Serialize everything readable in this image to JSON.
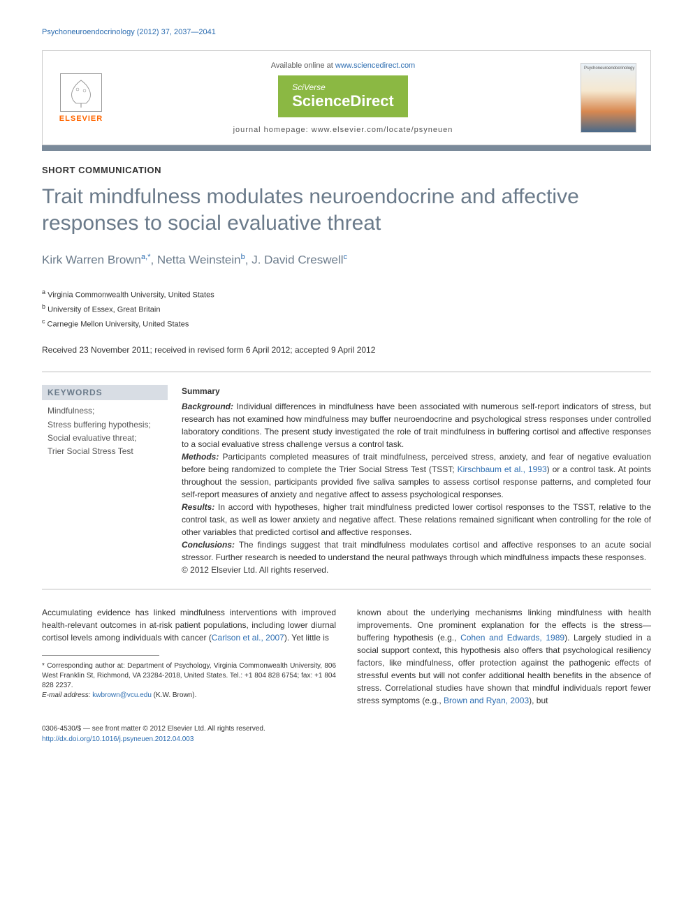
{
  "running_header": "Psychoneuroendocrinology (2012) 37, 2037—2041",
  "masthead": {
    "elsevier": "ELSEVIER",
    "available": "Available online at ",
    "available_link": "www.sciencedirect.com",
    "sciverse_tag": "SciVerse",
    "sciverse_main": "ScienceDirect",
    "homepage": "journal homepage: www.elsevier.com/locate/psyneuen",
    "cover_title": "Psychoneuroendocrinology"
  },
  "article_type": "SHORT COMMUNICATION",
  "title": "Trait mindfulness modulates neuroendocrine and affective responses to social evaluative threat",
  "authors_html": "Kirk Warren Brown<sup>a,*</sup>, Netta Weinstein<sup>b</sup>, J. David Creswell<sup>c</sup>",
  "affiliations": [
    "a Virginia Commonwealth University, United States",
    "b University of Essex, Great Britain",
    "c Carnegie Mellon University, United States"
  ],
  "dates": "Received 23 November 2011; received in revised form 6 April 2012; accepted 9 April 2012",
  "keywords_heading": "KEYWORDS",
  "keywords": "Mindfulness;\nStress buffering hypothesis;\nSocial evaluative threat;\nTrier Social Stress Test",
  "summary": {
    "heading": "Summary",
    "background_label": "Background:",
    "background": " Individual differences in mindfulness have been associated with numerous self-report indicators of stress, but research has not examined how mindfulness may buffer neuroendocrine and psychological stress responses under controlled laboratory conditions. The present study investigated the role of trait mindfulness in buffering cortisol and affective responses to a social evaluative stress challenge versus a control task.",
    "methods_label": "Methods:",
    "methods_a": " Participants completed measures of trait mindfulness, perceived stress, anxiety, and fear of negative evaluation before being randomized to complete the Trier Social Stress Test (TSST; ",
    "methods_link": "Kirschbaum et al., 1993",
    "methods_b": ") or a control task. At points throughout the session, participants provided five saliva samples to assess cortisol response patterns, and completed four self-report measures of anxiety and negative affect to assess psychological responses.",
    "results_label": "Results:",
    "results": " In accord with hypotheses, higher trait mindfulness predicted lower cortisol responses to the TSST, relative to the control task, as well as lower anxiety and negative affect. These relations remained significant when controlling for the role of other variables that predicted cortisol and affective responses.",
    "conclusions_label": "Conclusions:",
    "conclusions": " The findings suggest that trait mindfulness modulates cortisol and affective responses to an acute social stressor. Further research is needed to understand the neural pathways through which mindfulness impacts these responses.",
    "copyright": "© 2012 Elsevier Ltd. All rights reserved."
  },
  "body": {
    "col1_a": "Accumulating evidence has linked mindfulness interventions with improved health-relevant outcomes in at-risk patient populations, including lower diurnal cortisol levels among individuals with cancer (",
    "col1_link": "Carlson et al., 2007",
    "col1_b": "). Yet little is",
    "col2_a": "known about the underlying mechanisms linking mindfulness with health improvements. One prominent explanation for the effects is the stress—buffering hypothesis (e.g., ",
    "col2_link1": "Cohen and Edwards, 1989",
    "col2_b": "). Largely studied in a social support context, this hypothesis also offers that psychological resiliency factors, like mindfulness, offer protection against the pathogenic effects of stressful events but will not confer additional health benefits in the absence of stress. Correlational studies have shown that mindful individuals report fewer stress symptoms (e.g., ",
    "col2_link2": "Brown and Ryan, 2003",
    "col2_c": "), but"
  },
  "footnotes": {
    "corr_label": "* Corresponding author at:",
    "corr": " Department of Psychology, Virginia Commonwealth University, 806 West Franklin St, Richmond, VA 23284-2018, United States. Tel.: +1 804 828 6754; fax: +1 804 828 2237.",
    "email_label": "E-mail address:",
    "email": " kwbrown@vcu.edu",
    "email_who": " (K.W. Brown)."
  },
  "footer": {
    "issn": "0306-4530/$ — see front matter © 2012 Elsevier Ltd. All rights reserved.",
    "doi": "http://dx.doi.org/10.1016/j.psyneuen.2012.04.003"
  },
  "colors": {
    "link": "#2b6cb0",
    "title": "#6a7a8a",
    "sciverse_bg": "#8bb843",
    "elsevier_orange": "#ff6600",
    "section_bar": "#7a8a9a",
    "keywords_bg": "#d8dde4"
  }
}
